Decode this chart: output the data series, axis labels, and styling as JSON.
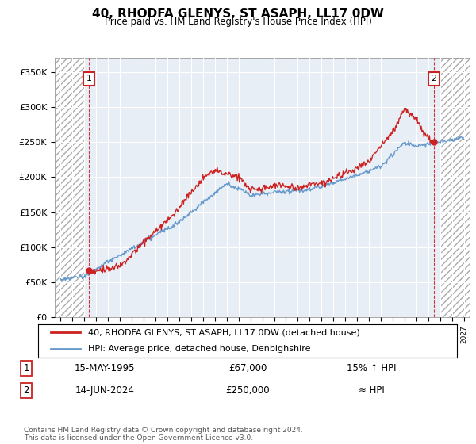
{
  "title": "40, RHODFA GLENYS, ST ASAPH, LL17 0DW",
  "subtitle": "Price paid vs. HM Land Registry's House Price Index (HPI)",
  "ylabel_ticks": [
    "£0",
    "£50K",
    "£100K",
    "£150K",
    "£200K",
    "£250K",
    "£300K",
    "£350K"
  ],
  "ytick_values": [
    0,
    50000,
    100000,
    150000,
    200000,
    250000,
    300000,
    350000
  ],
  "ylim": [
    0,
    370000
  ],
  "xlim_start": 1992.5,
  "xlim_end": 2027.5,
  "hpi_color": "#6699cc",
  "price_color": "#cc2222",
  "bg_color": "#e8eef5",
  "point1_x": 1995.37,
  "point1_y": 67000,
  "point1_label": "1",
  "point2_x": 2024.45,
  "point2_y": 250000,
  "point2_label": "2",
  "legend_line1": "40, RHODFA GLENYS, ST ASAPH, LL17 0DW (detached house)",
  "legend_line2": "HPI: Average price, detached house, Denbighshire",
  "table_row1_num": "1",
  "table_row1_date": "15-MAY-1995",
  "table_row1_price": "£67,000",
  "table_row1_hpi": "15% ↑ HPI",
  "table_row2_num": "2",
  "table_row2_date": "14-JUN-2024",
  "table_row2_price": "£250,000",
  "table_row2_hpi": "≈ HPI",
  "footer": "Contains HM Land Registry data © Crown copyright and database right 2024.\nThis data is licensed under the Open Government Licence v3.0.",
  "hatch_left_end": 1995.0,
  "hatch_right_start": 2025.0
}
